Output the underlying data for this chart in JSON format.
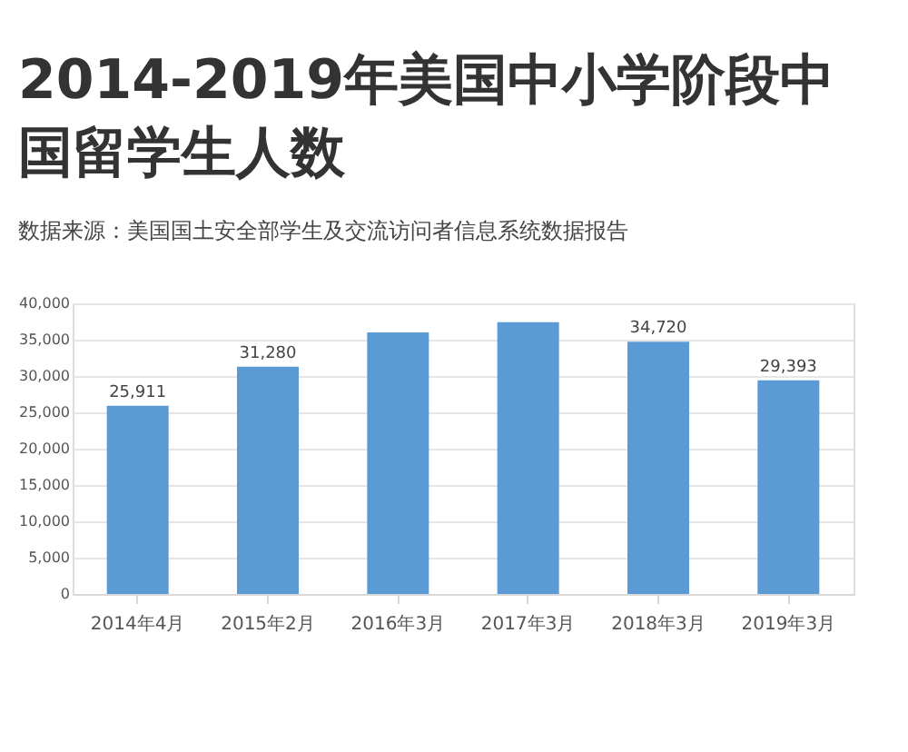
{
  "chart_data": {
    "type": "bar",
    "title": "2014-2019年美国中小学阶段中国留学生人数",
    "annotations": [
      "数据来源：美国国土安全部学生及交流访问者信息系统数据报告"
    ],
    "categories": [
      "2014年4月",
      "2015年2月",
      "2016年3月",
      "2017年3月",
      "2018年3月",
      "2019年3月"
    ],
    "values": [
      25911,
      31280,
      36000,
      37400,
      34720,
      29393
    ],
    "value_labels": [
      "25,911",
      "31,280",
      null,
      null,
      "34,720",
      "29,393"
    ],
    "color": "#5b9bd5",
    "ylim": [
      0,
      40000
    ],
    "yticks": [
      {
        "value": 0,
        "label": "0"
      },
      {
        "value": 5000,
        "label": "5,000"
      },
      {
        "value": 10000,
        "label": "10,000"
      },
      {
        "value": 15000,
        "label": "15,000"
      },
      {
        "value": 20000,
        "label": "20,000"
      },
      {
        "value": 25000,
        "label": "25,000"
      },
      {
        "value": 30000,
        "label": "30,000"
      },
      {
        "value": 35000,
        "label": "35,000"
      },
      {
        "value": 40000,
        "label": "40,000"
      }
    ],
    "grid": "y"
  }
}
